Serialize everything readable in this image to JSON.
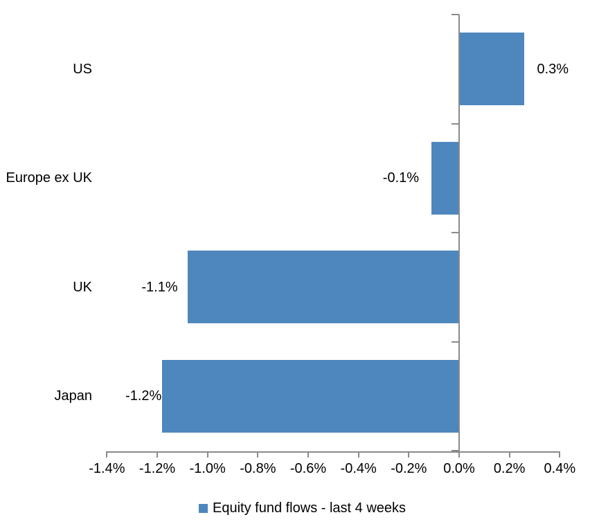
{
  "chart_data": {
    "type": "bar",
    "orientation": "horizontal",
    "title": "",
    "xlabel": "",
    "ylabel": "",
    "legend": "Equity fund flows - last 4 weeks",
    "legend_position": "bottom",
    "categories": [
      "US",
      "Europe ex UK",
      "UK",
      "Japan"
    ],
    "values": [
      0.3,
      -0.1,
      -1.1,
      -1.2
    ],
    "unit": "%",
    "data_labels": [
      "0.3%",
      "-0.1%",
      "-1.1%",
      "-1.2%"
    ],
    "plotted_values": [
      0.26,
      -0.11,
      -1.08,
      -1.18
    ],
    "x_ticks": [
      "-1.4%",
      "-1.2%",
      "-1.0%",
      "-0.8%",
      "-0.6%",
      "-0.4%",
      "-0.2%",
      "0.0%",
      "0.2%",
      "0.4%"
    ],
    "x_tick_values": [
      -1.4,
      -1.2,
      -1.0,
      -0.8,
      -0.6,
      -0.4,
      -0.2,
      0.0,
      0.2,
      0.4
    ],
    "xlim": [
      -1.4,
      0.4
    ],
    "grid": false,
    "bar_color": "#4E86BE",
    "axis_color": "#8A8A8A",
    "text_color": "#000000",
    "background_color": "#FFFFFF"
  }
}
